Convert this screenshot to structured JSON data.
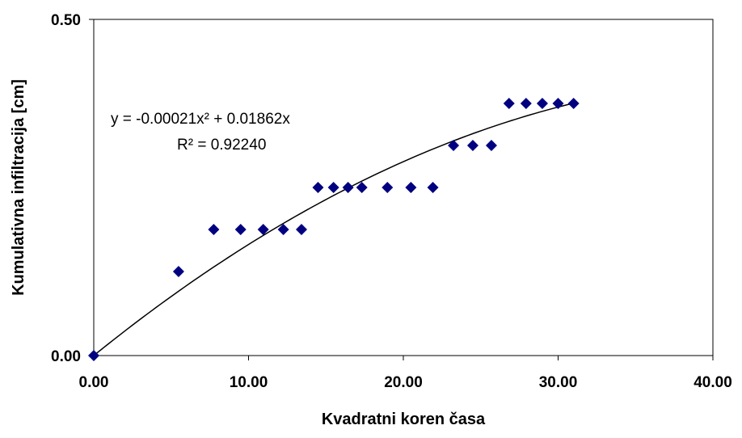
{
  "chart_data": {
    "type": "scatter",
    "title": "",
    "xlabel": "Kvadratni koren časa",
    "ylabel": "Kumulativna infiltracija [cm]",
    "xlim": [
      0,
      40
    ],
    "ylim": [
      0,
      0.5
    ],
    "x_ticks": [
      "0.00",
      "10.00",
      "20.00",
      "30.00",
      "40.00"
    ],
    "y_ticks": [
      "0.00",
      "0.50"
    ],
    "grid": false,
    "legend": "none",
    "marker": "diamond",
    "marker_color": "#000080",
    "series": [
      {
        "x": [
          0.0,
          5.48,
          7.75,
          9.49,
          10.95,
          12.25,
          13.42,
          14.49,
          15.49,
          16.43,
          17.32,
          18.97,
          20.49,
          21.91,
          23.24,
          24.49,
          25.69,
          26.83,
          27.93,
          28.98,
          30.0,
          31.0
        ],
        "y": [
          0.0,
          0.125,
          0.1875,
          0.1875,
          0.1875,
          0.1875,
          0.1875,
          0.25,
          0.25,
          0.25,
          0.25,
          0.25,
          0.25,
          0.25,
          0.3125,
          0.3125,
          0.3125,
          0.375,
          0.375,
          0.375,
          0.375,
          0.375
        ]
      }
    ],
    "trendline": {
      "type": "polynomial",
      "a": -0.00021,
      "b": 0.01862,
      "x_range": [
        0,
        31
      ]
    },
    "annotations": {
      "equation": "y = -0.00021x² + 0.01862x",
      "r_squared": "R² = 0.92240"
    }
  }
}
